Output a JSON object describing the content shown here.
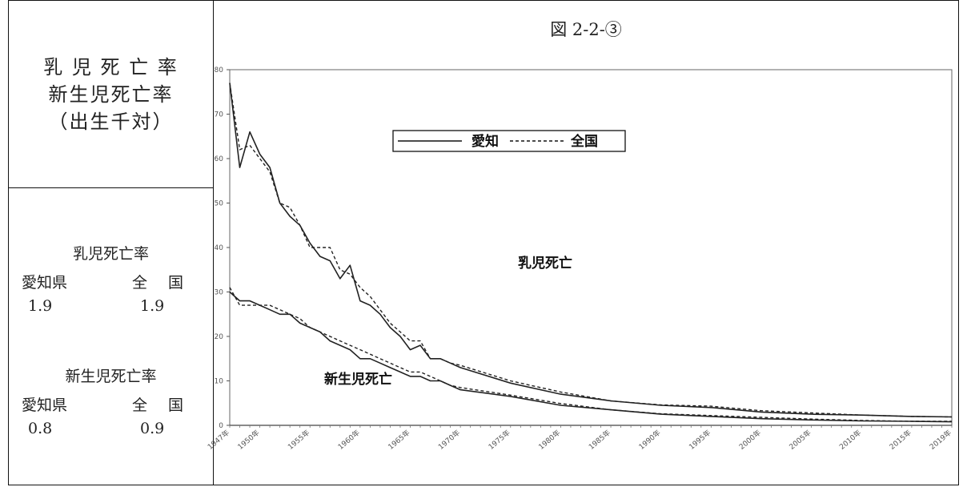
{
  "left_panel": {
    "heading": [
      "乳 児 死 亡 率",
      "新生児死亡率",
      "（出生千対）"
    ],
    "infant_block": {
      "title": "乳児死亡率",
      "aichi_label": "愛知県",
      "national_label": "全 国",
      "aichi_value": "1.9",
      "national_value": "1.9"
    },
    "neonatal_block": {
      "title": "新生児死亡率",
      "aichi_label": "愛知県",
      "national_label": "全 国",
      "aichi_value": "0.8",
      "national_value": "0.9"
    }
  },
  "figure_title": "図 2-2-③",
  "chart_data": {
    "type": "line",
    "ylim": [
      0,
      80
    ],
    "yticks": [
      0,
      10,
      20,
      30,
      40,
      50,
      60,
      70,
      80
    ],
    "ytick_labels": [
      "0",
      "10",
      "20",
      "30",
      "40",
      "50",
      "60",
      "70",
      "80"
    ],
    "xlim": [
      1947,
      2019
    ],
    "xticks": [
      1947,
      1950,
      1955,
      1960,
      1965,
      1970,
      1975,
      1980,
      1985,
      1990,
      1995,
      2000,
      2005,
      2010,
      2015,
      2019
    ],
    "xtick_labels": [
      "1947年",
      "1950年",
      "1955年",
      "1960年",
      "1965年",
      "1970年",
      "1975年",
      "1980年",
      "1985年",
      "1990年",
      "1995年",
      "2000年",
      "2005年",
      "2010年",
      "2015年",
      "2019年"
    ],
    "legend": {
      "placement": "top-left",
      "aichi": "愛知",
      "national": "全国"
    },
    "annotations": {
      "infant": "乳児死亡",
      "neonatal": "新生児死亡"
    },
    "x": [
      1947,
      1948,
      1949,
      1950,
      1951,
      1952,
      1953,
      1954,
      1955,
      1956,
      1957,
      1958,
      1959,
      1960,
      1961,
      1962,
      1963,
      1964,
      1965,
      1966,
      1967,
      1968,
      1969,
      1970,
      1975,
      1980,
      1985,
      1990,
      1995,
      2000,
      2005,
      2010,
      2015,
      2019
    ],
    "series": [
      {
        "name": "愛知",
        "group": "infant",
        "style": "solid",
        "values": [
          77,
          58,
          66,
          61,
          58,
          50,
          47,
          45,
          41,
          38,
          37,
          33,
          36,
          28,
          27,
          25,
          22,
          20,
          17,
          18,
          15,
          15,
          14,
          13,
          9.5,
          7,
          5.5,
          4.5,
          4,
          3,
          2.5,
          2.3,
          2,
          1.9
        ]
      },
      {
        "name": "全国",
        "group": "infant",
        "style": "dashed",
        "values": [
          77,
          62,
          63,
          60,
          57,
          50,
          49,
          45,
          40,
          40,
          40,
          35,
          34,
          31,
          29,
          26,
          23,
          21,
          19,
          19,
          15,
          15,
          14,
          13.5,
          10,
          7.5,
          5.5,
          4.6,
          4.3,
          3.3,
          2.8,
          2.3,
          2,
          1.9
        ]
      },
      {
        "name": "愛知",
        "group": "neonatal",
        "style": "solid",
        "values": [
          30,
          28,
          28,
          27,
          26,
          25,
          25,
          23,
          22,
          21,
          19,
          18,
          17,
          15,
          15,
          14,
          13,
          12,
          11,
          11,
          10,
          10,
          9,
          8,
          6.5,
          4.5,
          3.5,
          2.5,
          2,
          1.5,
          1.2,
          1,
          0.9,
          0.8
        ]
      },
      {
        "name": "全国",
        "group": "neonatal",
        "style": "dashed",
        "values": [
          31,
          27,
          27,
          27,
          27,
          26,
          25,
          24,
          22,
          21,
          20,
          19,
          18,
          17,
          16,
          15,
          14,
          13,
          12,
          12,
          11,
          10,
          9,
          8.5,
          6.8,
          4.9,
          3.5,
          2.6,
          2.2,
          1.8,
          1.4,
          1.1,
          0.9,
          0.9
        ]
      }
    ]
  }
}
